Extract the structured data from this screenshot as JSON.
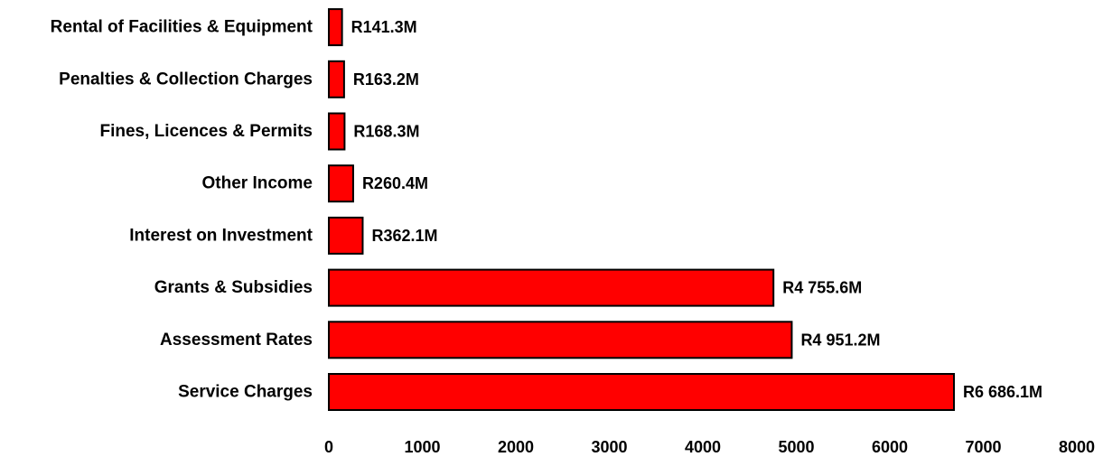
{
  "chart_data": {
    "type": "bar",
    "orientation": "horizontal",
    "categories": [
      "Service Charges",
      "Assessment Rates",
      "Grants & Subsidies",
      "Interest on Investment",
      "Other Income",
      "Fines, Licences & Permits",
      "Penalties & Collection Charges",
      "Rental of Facilities & Equipment"
    ],
    "values": [
      6686.1,
      4951.2,
      4755.6,
      362.1,
      260.4,
      168.3,
      163.2,
      141.3
    ],
    "data_labels": [
      "R6 686.1M",
      "R4 951.2M",
      "R4 755.6M",
      "R362.1M",
      "R260.4M",
      "R168.3M",
      "R163.2M",
      "R141.3M"
    ],
    "xlim": [
      0,
      8000
    ],
    "xticks": [
      "0",
      "1000",
      "2000",
      "3000",
      "4000",
      "5000",
      "6000",
      "7000",
      "8000"
    ],
    "grid": false,
    "legend": false,
    "bar_color": "#ff0000",
    "bar_outline_color": "#000000"
  }
}
